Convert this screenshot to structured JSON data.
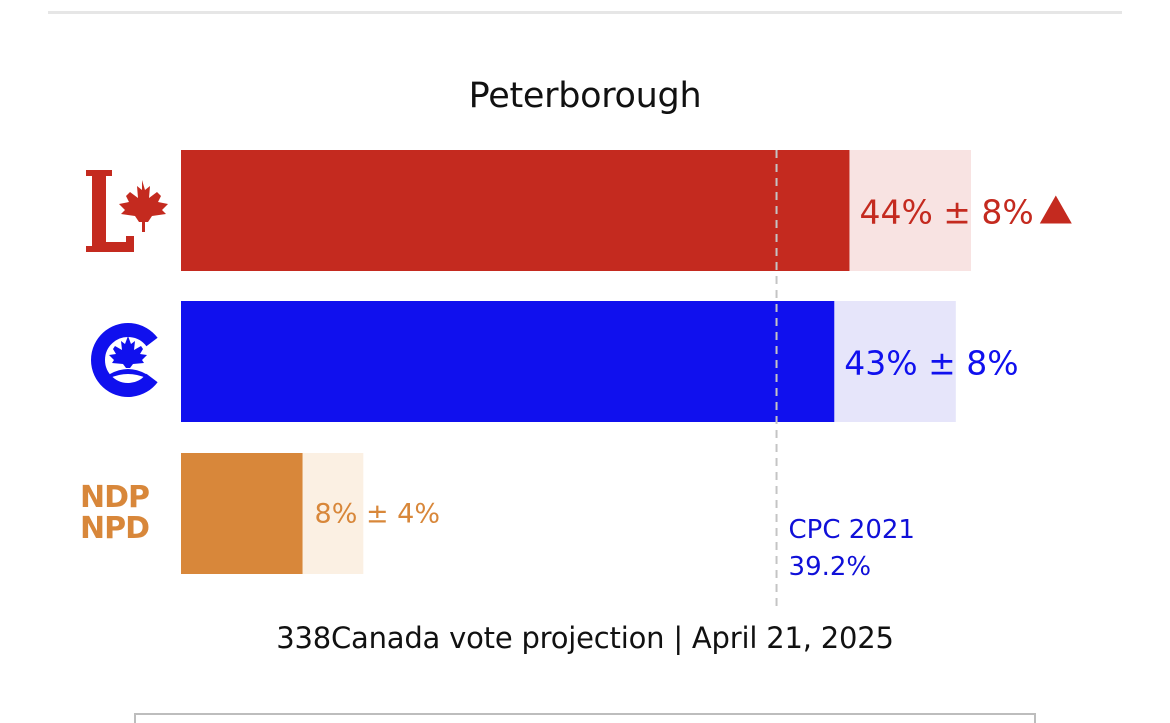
{
  "title": "Peterborough",
  "footer": "338Canada vote projection | April 21, 2025",
  "chart_data": {
    "type": "bar",
    "orientation": "horizontal",
    "categories": [
      "LPC",
      "CPC",
      "NDP"
    ],
    "values": [
      44,
      43,
      8
    ],
    "margin": [
      8,
      8,
      4
    ],
    "range_high": [
      52,
      51,
      12
    ],
    "labels": [
      "44% ± 8%",
      "43% ± 8%",
      "8% ± 4%"
    ],
    "trend": [
      "up",
      "",
      ""
    ],
    "colors": [
      "#c42a1f",
      "#1010ee",
      "#d8873a"
    ],
    "range_colors": [
      "#f8e3e2",
      "#e6e5fa",
      "#fbf0e3"
    ],
    "xlim": [
      0,
      52
    ],
    "reference_line": {
      "value": 39.2,
      "label_line1": "CPC 2021",
      "label_line2": "39.2%",
      "color": "#1010d8"
    }
  },
  "logos": {
    "ndp_line1": "NDP",
    "ndp_line2": "NPD"
  }
}
